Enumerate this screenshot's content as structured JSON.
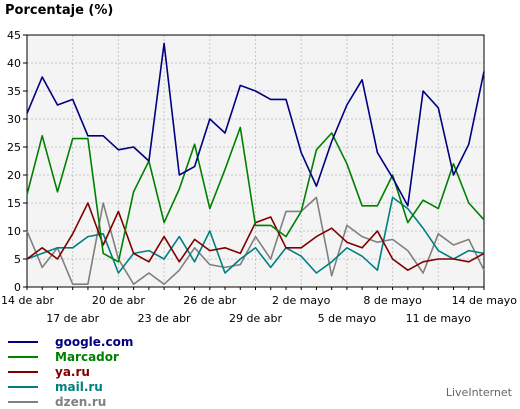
{
  "chart_data": {
    "type": "line",
    "title": "Porcentaje (%)",
    "xlabel": "",
    "ylabel": "",
    "ylim": [
      0,
      45
    ],
    "yticks": [
      0,
      5,
      10,
      15,
      20,
      25,
      30,
      35,
      40,
      45
    ],
    "grid": true,
    "legend_position": "bottom-left",
    "x": [
      "14 de abr",
      "15 de abr",
      "16 de abr",
      "17 de abr",
      "18 de abr",
      "19 de abr",
      "20 de abr",
      "21 de abr",
      "22 de abr",
      "23 de abr",
      "24 de abr",
      "25 de abr",
      "26 de abr",
      "27 de abr",
      "28 de abr",
      "29 de abr",
      "30 de abr",
      "1 de mayo",
      "2 de mayo",
      "3 de mayo",
      "4 de mayo",
      "5 de mayo",
      "6 de mayo",
      "7 de mayo",
      "8 de mayo",
      "9 de mayo",
      "10 de mayo",
      "11 de mayo",
      "12 de mayo",
      "13 de mayo",
      "14 de mayo"
    ],
    "xticks_top": [
      {
        "index": 0,
        "label": "14 de abr"
      },
      {
        "index": 6,
        "label": "20 de abr"
      },
      {
        "index": 12,
        "label": "26 de abr"
      },
      {
        "index": 18,
        "label": "2 de mayo"
      },
      {
        "index": 24,
        "label": "8 de mayo"
      },
      {
        "index": 30,
        "label": "14 de mayo"
      }
    ],
    "xticks_bottom": [
      {
        "index": 3,
        "label": "17 de abr"
      },
      {
        "index": 9,
        "label": "23 de abr"
      },
      {
        "index": 15,
        "label": "29 de abr"
      },
      {
        "index": 21,
        "label": "5 de mayo"
      },
      {
        "index": 27,
        "label": "11 de mayo"
      }
    ],
    "series": [
      {
        "name": "google.com",
        "color": "#000080",
        "values": [
          31,
          37.5,
          32.5,
          33.5,
          27,
          27,
          24.5,
          25,
          22.5,
          43.5,
          20,
          21.5,
          30,
          27.5,
          36,
          35,
          33.5,
          33.5,
          24,
          18,
          26,
          32.5,
          37,
          24,
          19.5,
          14.5,
          35,
          32,
          20,
          25.5,
          38.5
        ]
      },
      {
        "name": "Marcador",
        "color": "#008000",
        "values": [
          16.5,
          27,
          17,
          26.5,
          26.5,
          6,
          4.5,
          17,
          22.5,
          11.5,
          17.5,
          25.5,
          14,
          21,
          28.5,
          11,
          11,
          9,
          13.5,
          24.5,
          27.5,
          22,
          14.5,
          14.5,
          20,
          11.5,
          15.5,
          14,
          22,
          15,
          12
        ]
      },
      {
        "name": "ya.ru",
        "color": "#800000",
        "values": [
          5,
          7,
          5,
          9.5,
          15,
          7.5,
          13.5,
          6,
          4.5,
          9,
          4.5,
          8.5,
          6.5,
          7,
          6,
          11.5,
          12.5,
          7,
          7,
          9,
          10.5,
          8,
          7,
          10,
          5,
          3,
          4.5,
          5,
          5,
          4.5,
          6
        ]
      },
      {
        "name": "mail.ru",
        "color": "#008080",
        "values": [
          5,
          6,
          7,
          7,
          9,
          9.5,
          2.5,
          6,
          6.5,
          5,
          9,
          4.5,
          10,
          2.5,
          5,
          7,
          3.5,
          7,
          5.5,
          2.5,
          4.5,
          7,
          5.5,
          3,
          16,
          14,
          10.5,
          6.5,
          5,
          6.5,
          6
        ]
      },
      {
        "name": "dzen.ru",
        "color": "#808080",
        "values": [
          10,
          3.5,
          7,
          0.5,
          0.5,
          15,
          5,
          0.5,
          2.5,
          0.5,
          3,
          7,
          4,
          3.5,
          4,
          9,
          5,
          13.5,
          13.5,
          16,
          2,
          11,
          9,
          8,
          8.5,
          6.5,
          2.5,
          9.5,
          7.5,
          8.5,
          3
        ]
      }
    ]
  },
  "branding": {
    "text": "LiveInternet"
  }
}
